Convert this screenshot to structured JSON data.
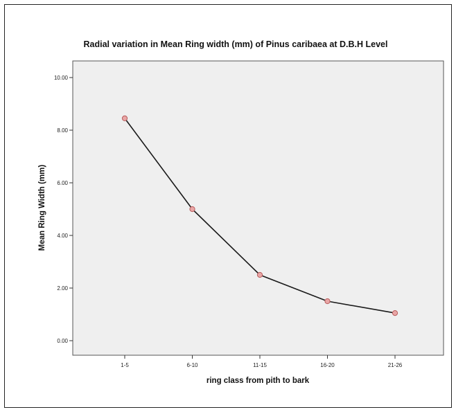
{
  "chart_data": {
    "type": "line",
    "title": "Radial variation in Mean Ring width (mm) of Pinus caribaea at D.B.H Level",
    "xlabel": "ring class from pith to bark",
    "ylabel": "Mean Ring Width (mm)",
    "categories": [
      "1-5",
      "6-10",
      "11-15",
      "16-20",
      "21-26"
    ],
    "series": [
      {
        "values": [
          8.45,
          5.0,
          2.5,
          1.5,
          1.05
        ]
      }
    ],
    "ylim": [
      0,
      10
    ],
    "yticks": [
      "0.00",
      "2.00",
      "4.00",
      "6.00",
      "8.00",
      "10.00"
    ],
    "grid": false,
    "legend": "none",
    "colors": {
      "plot_background": "#efefef",
      "line": "#1a1a1a",
      "marker_fill": "#e8a6a6",
      "marker_stroke": "#b85a5a"
    }
  }
}
